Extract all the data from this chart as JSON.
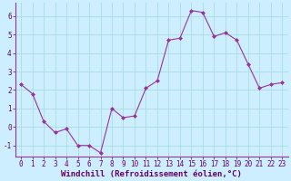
{
  "x": [
    0,
    1,
    2,
    3,
    4,
    5,
    6,
    7,
    8,
    9,
    10,
    11,
    12,
    13,
    14,
    15,
    16,
    17,
    18,
    19,
    20,
    21,
    22,
    23
  ],
  "y": [
    2.3,
    1.8,
    0.3,
    -0.3,
    -0.1,
    -1.0,
    -1.0,
    -1.4,
    1.0,
    0.5,
    0.6,
    2.1,
    2.5,
    4.7,
    4.8,
    6.3,
    6.2,
    4.9,
    5.1,
    4.7,
    3.4,
    2.1,
    2.3,
    2.4
  ],
  "line_color": "#993399",
  "marker_color": "#993399",
  "bg_color": "#cceeff",
  "grid_color": "#aadddd",
  "xlabel": "Windchill (Refroidissement éolien,°C)",
  "xlim": [
    -0.5,
    23.5
  ],
  "ylim": [
    -1.6,
    6.7
  ],
  "yticks": [
    -1,
    0,
    1,
    2,
    3,
    4,
    5,
    6
  ],
  "xticks": [
    0,
    1,
    2,
    3,
    4,
    5,
    6,
    7,
    8,
    9,
    10,
    11,
    12,
    13,
    14,
    15,
    16,
    17,
    18,
    19,
    20,
    21,
    22,
    23
  ],
  "xtick_labels": [
    "0",
    "1",
    "2",
    "3",
    "4",
    "5",
    "6",
    "7",
    "8",
    "9",
    "10",
    "11",
    "12",
    "13",
    "14",
    "15",
    "16",
    "17",
    "18",
    "19",
    "20",
    "21",
    "22",
    "23"
  ],
  "tick_fontsize": 5.5,
  "xlabel_fontsize": 6.5
}
